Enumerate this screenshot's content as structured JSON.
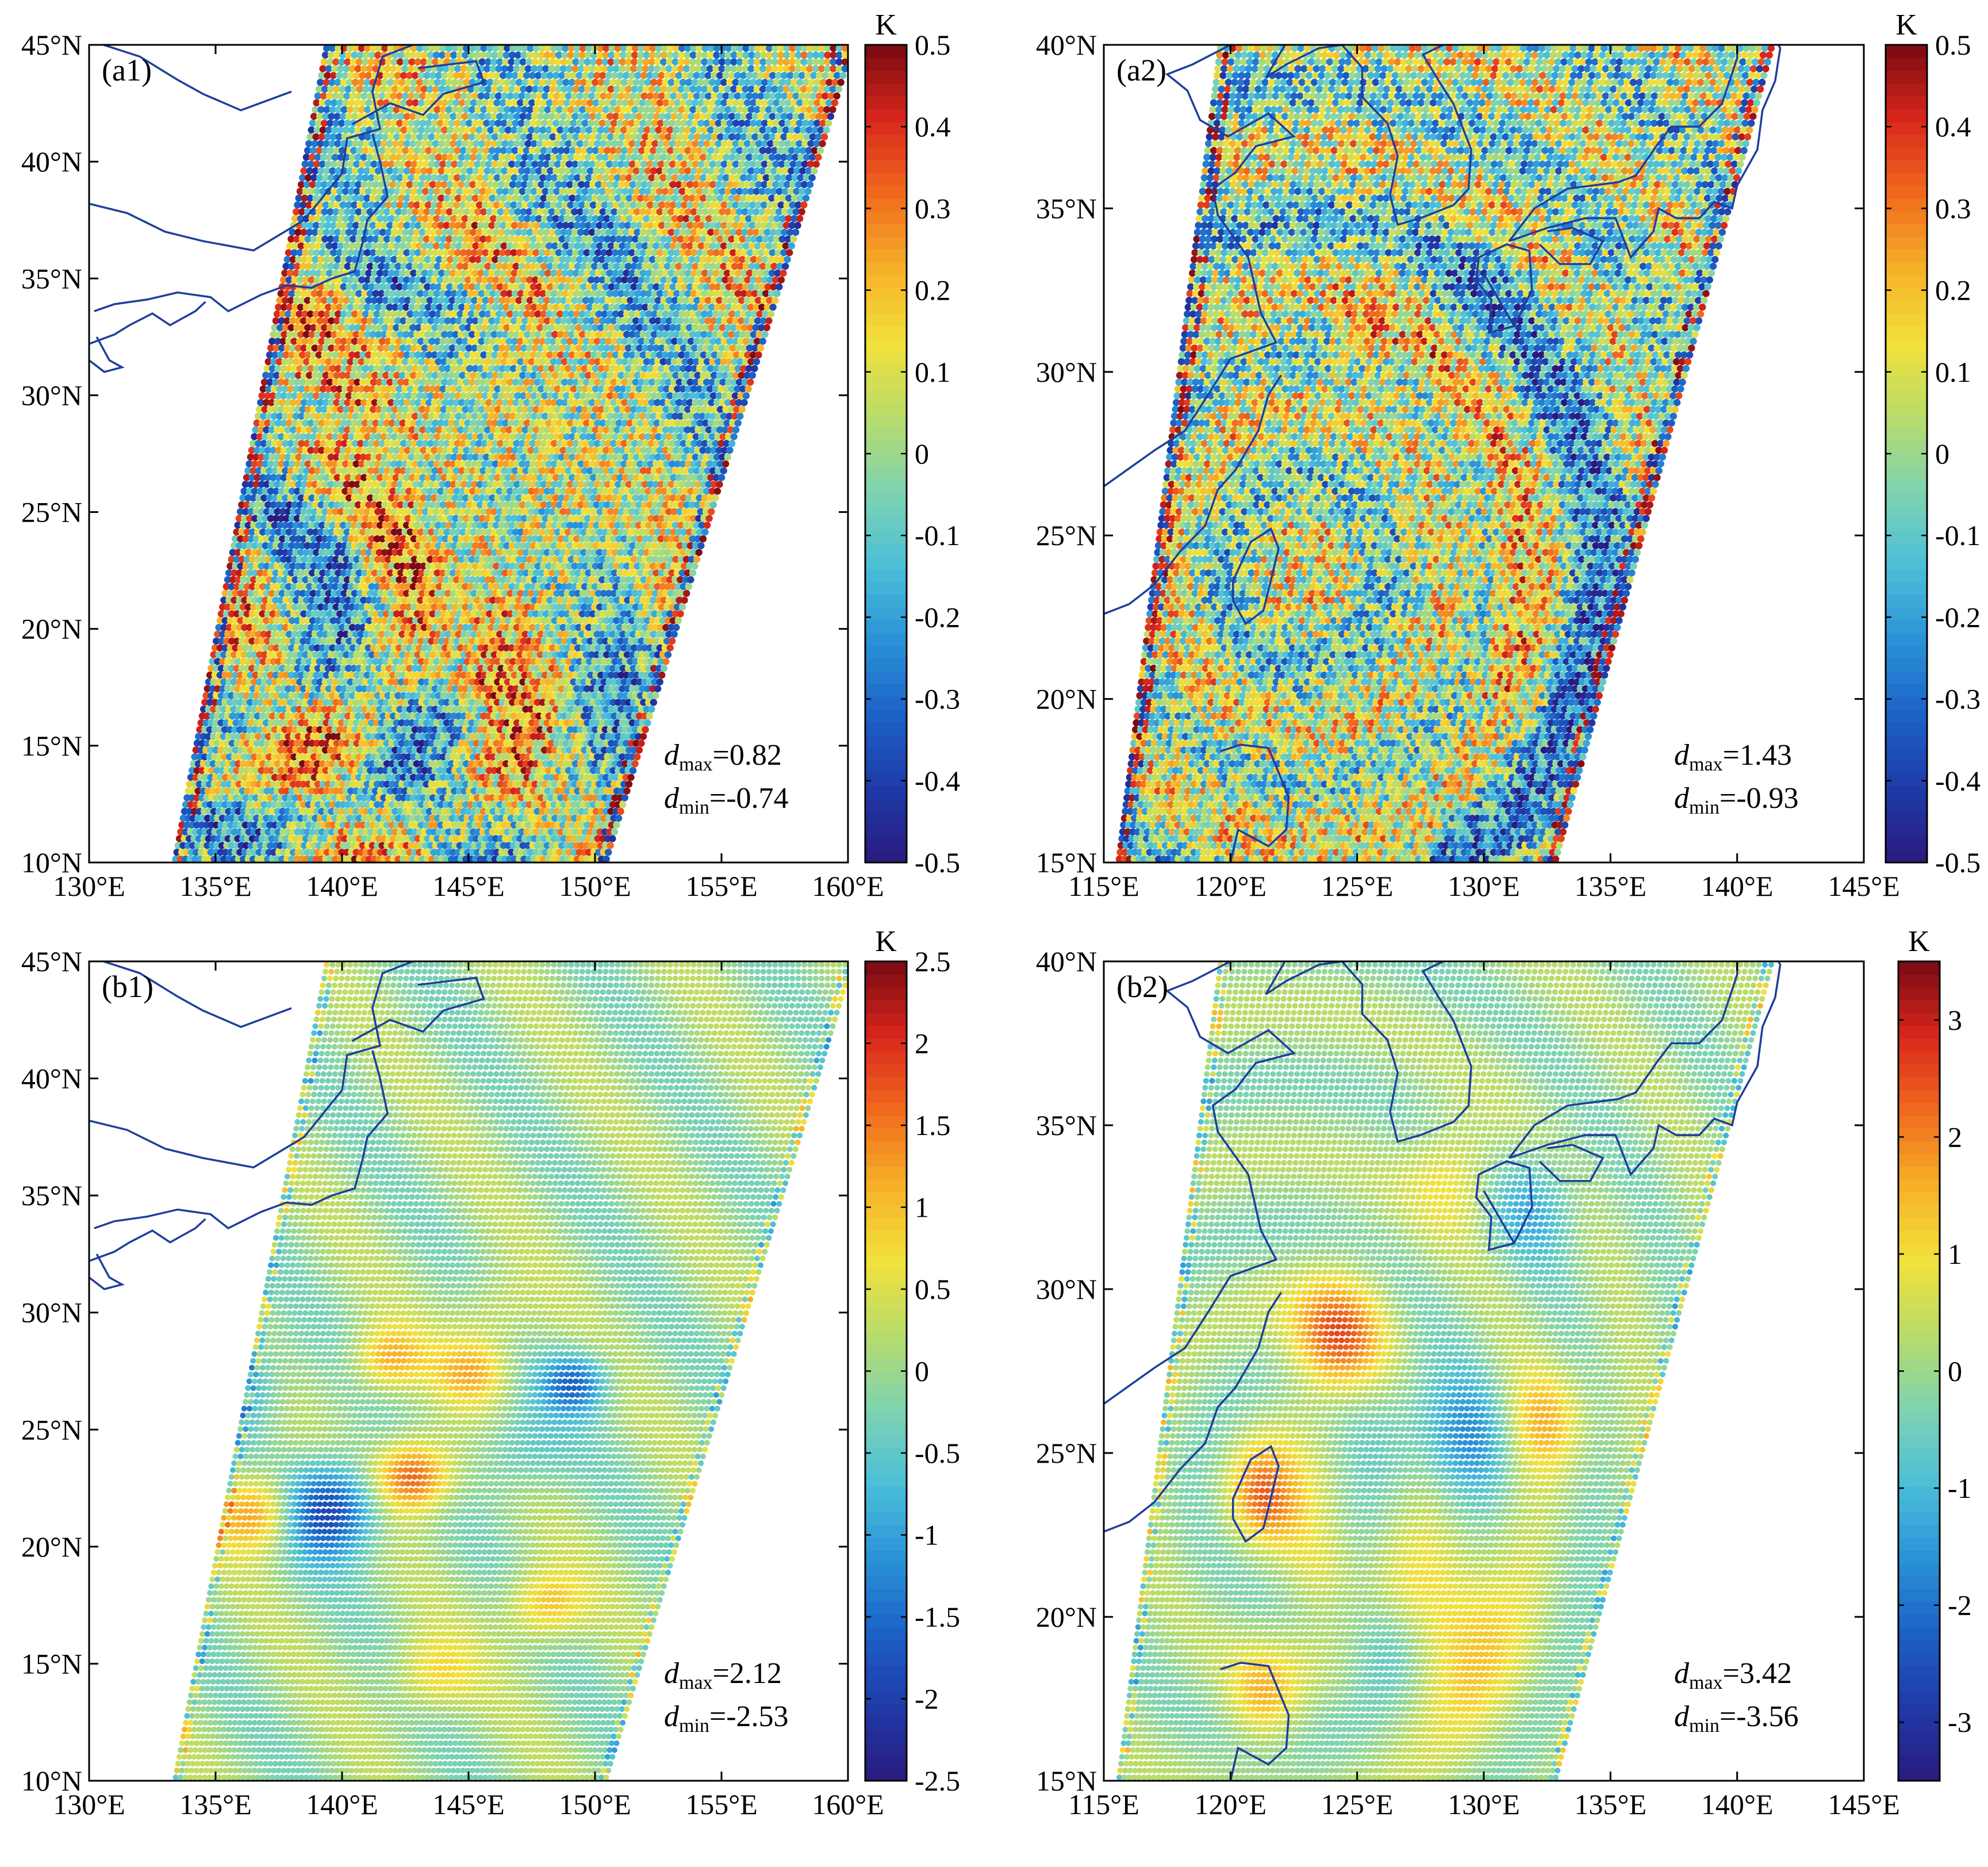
{
  "figure": {
    "panels": [
      {
        "id": "a1",
        "label": "(a1)",
        "lon_range": [
          130,
          160
        ],
        "lat_range": [
          10,
          45
        ],
        "x_ticks": [
          "130°E",
          "135°E",
          "140°E",
          "145°E",
          "150°E",
          "155°E",
          "160°E"
        ],
        "y_ticks": [
          "10°N",
          "15°N",
          "20°N",
          "25°N",
          "30°N",
          "35°N",
          "40°N",
          "45°N"
        ],
        "colorbar": {
          "unit": "K",
          "min": -0.5,
          "max": 0.5,
          "ticks": [
            "0.5",
            "0.4",
            "0.3",
            "0.2",
            "0.1",
            "0",
            "-0.1",
            "-0.2",
            "-0.3",
            "-0.4",
            "-0.5"
          ]
        },
        "stats": {
          "dmax": "=0.82",
          "dmin": "=-0.74"
        },
        "style": "noisy"
      },
      {
        "id": "a2",
        "label": "(a2)",
        "lon_range": [
          115,
          145
        ],
        "lat_range": [
          15,
          40
        ],
        "x_ticks": [
          "115°E",
          "120°E",
          "125°E",
          "130°E",
          "135°E",
          "140°E",
          "145°E"
        ],
        "y_ticks": [
          "15°N",
          "20°N",
          "25°N",
          "30°N",
          "35°N",
          "40°N"
        ],
        "colorbar": {
          "unit": "K",
          "min": -0.5,
          "max": 0.5,
          "ticks": [
            "0.5",
            "0.4",
            "0.3",
            "0.2",
            "0.1",
            "0",
            "-0.1",
            "-0.2",
            "-0.3",
            "-0.4",
            "-0.5"
          ]
        },
        "stats": {
          "dmax": "=1.43",
          "dmin": "=-0.93"
        },
        "style": "noisy"
      },
      {
        "id": "b1",
        "label": "(b1)",
        "lon_range": [
          130,
          160
        ],
        "lat_range": [
          10,
          45
        ],
        "x_ticks": [
          "130°E",
          "135°E",
          "140°E",
          "145°E",
          "150°E",
          "155°E",
          "160°E"
        ],
        "y_ticks": [
          "10°N",
          "15°N",
          "20°N",
          "25°N",
          "30°N",
          "35°N",
          "40°N",
          "45°N"
        ],
        "colorbar": {
          "unit": "K",
          "min": -2.5,
          "max": 2.5,
          "ticks": [
            "2.5",
            "2",
            "1.5",
            "1",
            "0.5",
            "0",
            "-0.5",
            "-1",
            "-1.5",
            "-2",
            "-2.5"
          ]
        },
        "stats": {
          "dmax": "=2.12",
          "dmin": "=-2.53"
        },
        "style": "smooth"
      },
      {
        "id": "b2",
        "label": "(b2)",
        "lon_range": [
          115,
          145
        ],
        "lat_range": [
          15,
          40
        ],
        "x_ticks": [
          "115°E",
          "120°E",
          "125°E",
          "130°E",
          "135°E",
          "140°E",
          "145°E"
        ],
        "y_ticks": [
          "15°N",
          "20°N",
          "25°N",
          "30°N",
          "35°N",
          "40°N"
        ],
        "colorbar": {
          "unit": "K",
          "min": -3.5,
          "max": 3.5,
          "ticks": [
            "3",
            "2",
            "1",
            "0",
            "-1",
            "-2",
            "-3"
          ]
        },
        "stats": {
          "dmax": "=3.42",
          "dmin": "=-3.56"
        },
        "style": "smooth"
      }
    ],
    "stat_symbols": {
      "d": "d",
      "max_sub": "max",
      "min_sub": "min"
    },
    "colors": {
      "coastline": "#1f3f9c",
      "colormap": [
        "#2a1a7e",
        "#1f3aa8",
        "#1c62c6",
        "#2a93d8",
        "#4cbfd8",
        "#7fd3b0",
        "#b8dc6a",
        "#f2e13a",
        "#f6b028",
        "#f06a1e",
        "#d9261c",
        "#7a0a12"
      ]
    }
  }
}
